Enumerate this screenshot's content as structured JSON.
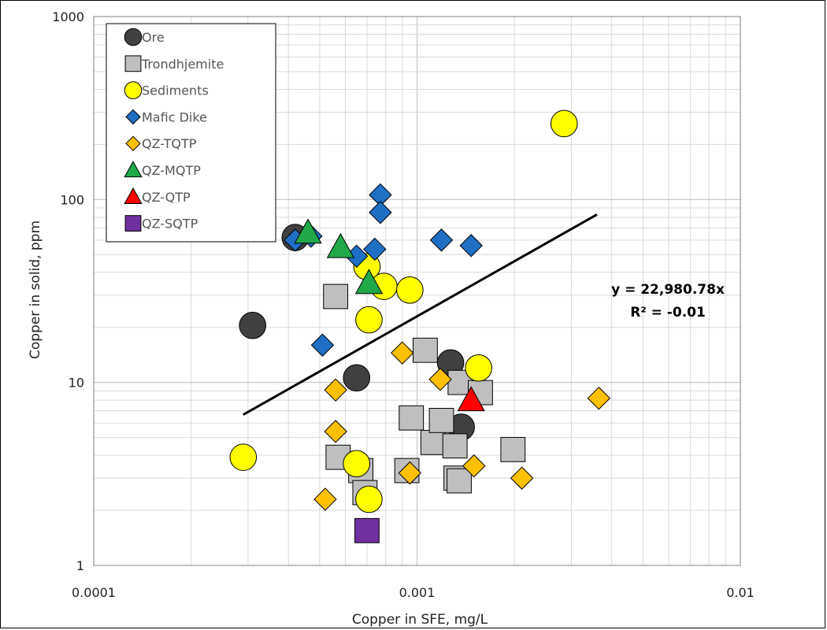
{
  "chart_data": {
    "type": "scatter",
    "title": "",
    "xlabel": "Copper in SFE, mg/L",
    "ylabel": "Copper in solid, ppm",
    "x_scale": "log",
    "y_scale": "log",
    "xlim": [
      0.0001,
      0.01
    ],
    "ylim": [
      1,
      1000
    ],
    "x_ticks": [
      "0.0001",
      "0.001",
      "0.01"
    ],
    "y_ticks": [
      "1",
      "10",
      "100",
      "1000"
    ],
    "grid": true,
    "legend_position": "top-left",
    "series": [
      {
        "name": "Ore",
        "marker": "circle",
        "color": "#404040",
        "points": [
          [
            0.00042,
            62
          ],
          [
            0.00031,
            20.5
          ],
          [
            0.00065,
            10.6
          ],
          [
            0.00127,
            12.8
          ],
          [
            0.00137,
            5.7
          ]
        ]
      },
      {
        "name": "Trondhjemite",
        "marker": "square",
        "color": "#bfbfbf",
        "points": [
          [
            0.00056,
            29.5
          ],
          [
            0.00057,
            3.9
          ],
          [
            0.00067,
            3.3
          ],
          [
            0.00069,
            2.5
          ],
          [
            0.00093,
            3.3
          ],
          [
            0.00096,
            6.4
          ],
          [
            0.00106,
            15
          ],
          [
            0.00112,
            4.7
          ],
          [
            0.00119,
            6.2
          ],
          [
            0.00131,
            4.5
          ],
          [
            0.00136,
            10
          ],
          [
            0.00132,
            3.0
          ],
          [
            0.00135,
            2.9
          ],
          [
            0.00157,
            8.8
          ],
          [
            0.00198,
            4.3
          ]
        ]
      },
      {
        "name": "Sediments",
        "marker": "circle",
        "color": "#ffff00",
        "points": [
          [
            0.00029,
            3.9
          ],
          [
            0.00065,
            3.6
          ],
          [
            0.0007,
            43
          ],
          [
            0.00071,
            22
          ],
          [
            0.00071,
            2.3
          ],
          [
            0.00079,
            33.5
          ],
          [
            0.00095,
            32
          ],
          [
            0.00155,
            12
          ],
          [
            0.00285,
            260
          ]
        ]
      },
      {
        "name": "Mafic Dike",
        "marker": "diamond",
        "color": "#1f6fc5",
        "points": [
          [
            0.00042,
            60
          ],
          [
            0.00047,
            63
          ],
          [
            0.00051,
            16
          ],
          [
            0.00065,
            49
          ],
          [
            0.00074,
            53.5
          ],
          [
            0.00077,
            106
          ],
          [
            0.00077,
            85
          ],
          [
            0.00119,
            60
          ],
          [
            0.00147,
            56
          ]
        ]
      },
      {
        "name": "QZ-TQTP",
        "marker": "diamond",
        "color": "#ffc000",
        "points": [
          [
            0.00052,
            2.3
          ],
          [
            0.00056,
            9.1
          ],
          [
            0.00056,
            5.4
          ],
          [
            0.0009,
            14.5
          ],
          [
            0.00095,
            3.2
          ],
          [
            0.00118,
            10.4
          ],
          [
            0.0015,
            3.5
          ],
          [
            0.00211,
            3.0
          ],
          [
            0.00365,
            8.2
          ]
        ]
      },
      {
        "name": "QZ-MQTP",
        "marker": "triangle",
        "color": "#21a849",
        "points": [
          [
            0.00046,
            66
          ],
          [
            0.00058,
            55
          ],
          [
            0.00071,
            35
          ]
        ]
      },
      {
        "name": "QZ-QTP",
        "marker": "triangle",
        "color": "#ff0000",
        "points": [
          [
            0.00147,
            8
          ]
        ]
      },
      {
        "name": "QZ-SQTP",
        "marker": "square",
        "color": "#7030a0",
        "points": [
          [
            0.0007,
            1.55
          ]
        ]
      }
    ],
    "trendline": {
      "x_range": [
        0.00029,
        0.0036
      ],
      "slope": 22980.78,
      "color": "#000000",
      "equation_label": "y = 22,980.78x",
      "r2_label": "R² = -0.01"
    }
  }
}
